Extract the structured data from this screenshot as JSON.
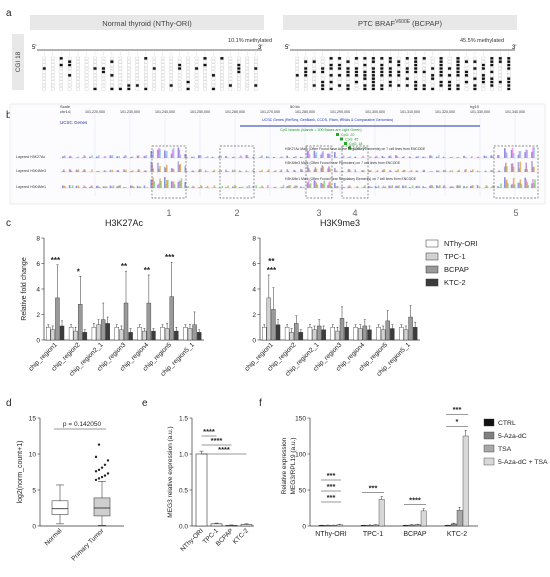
{
  "panel_labels": {
    "a": "a",
    "b": "b",
    "c": "c",
    "d": "d",
    "e": "e",
    "f": "f"
  },
  "panel_a": {
    "left_header": "Normal thyroid (NThy-ORI)",
    "right_header": "PTC BRAF",
    "right_header_sup": "V600E",
    "right_header_tail": " (BCPAP)",
    "side_label": "CGI 18",
    "left_methylation": "10.1% methylated",
    "right_methylation": "45.5% methylated",
    "end5": "5'",
    "end3": "3'"
  },
  "panel_b": {
    "scale_label": "Scale",
    "chrom_label": "chr14:",
    "scale_bar": "50 kb",
    "assembly": "hg19",
    "coords": [
      "101,220,000",
      "101,230,000",
      "101,240,000",
      "101,250,000",
      "101,260,000",
      "101,270,000",
      "101,280,000",
      "101,290,000",
      "101,300,000",
      "101,310,000",
      "101,320,000",
      "101,330,000",
      "101,340,000"
    ],
    "genes_label": "UCSC Genes",
    "genes_desc": "UCSC Genes (RefSeq, GenBank, CCDS, Rfam, tRNAs & Comparative Genomics)",
    "cpg_desc": "CpG Islands (Islands < 300 Bases are Light Green)",
    "cpg_items": [
      "CpG: 20",
      "CpG: 45",
      "CpG: 18",
      "CpG: 30"
    ],
    "tracks": [
      {
        "label": "Layered H3K27Ac",
        "desc": "H3K27Ac Mark (Often Found Near Active Regulatory Elements) on 7 cell lines from ENCODE"
      },
      {
        "label": "Layered H3K4Me3",
        "desc": "H3K4Me3 Mark (Often Found Near Promoters) on 7 cell lines from ENCODE"
      },
      {
        "label": "Layered H3K4Me1",
        "desc": "H3K4Me1 Mark (Often Found Near Regulatory Elements) on 7 cell lines from ENCODE"
      }
    ],
    "regions": [
      "1",
      "2",
      "3",
      "4",
      "5"
    ]
  },
  "panel_c_legend": [
    {
      "name": "NThy-ORI",
      "color": "#ffffff"
    },
    {
      "name": "TPC-1",
      "color": "#d2d2d2"
    },
    {
      "name": "BCPAP",
      "color": "#9a9a9a"
    },
    {
      "name": "KTC-2",
      "color": "#3c3c3c"
    }
  ],
  "panel_f_legend": [
    {
      "name": "CTRL",
      "color": "#111111"
    },
    {
      "name": "5-Aza-dC",
      "color": "#808080"
    },
    {
      "name": "TSA",
      "color": "#a8a8a8"
    },
    {
      "name": "5-Aza-dC + TSA",
      "color": "#d8d8d8"
    }
  ],
  "chart_data": [
    {
      "id": "c_left",
      "type": "bar",
      "title": "H3K27Ac",
      "ylabel": "Relative fold change",
      "ylim": [
        0,
        8
      ],
      "yticks": [
        "0",
        "2",
        "4",
        "6",
        "8"
      ],
      "categories": [
        "chip_region1",
        "chip_region2",
        "chip_region2_1",
        "chip_region3",
        "chip_region4",
        "chip_region5",
        "chip_region5_1"
      ],
      "series": [
        {
          "name": "NThy-ORI",
          "values": [
            1.0,
            1.0,
            1.0,
            1.0,
            1.0,
            1.0,
            1.0
          ],
          "err": [
            0.2,
            0.2,
            0.3,
            0.2,
            0.2,
            0.2,
            0.2
          ]
        },
        {
          "name": "TPC-1",
          "values": [
            0.8,
            0.7,
            1.2,
            0.8,
            0.7,
            0.9,
            0.9
          ],
          "err": [
            0.3,
            0.3,
            0.4,
            0.3,
            0.2,
            0.4,
            0.3
          ]
        },
        {
          "name": "BCPAP",
          "values": [
            3.3,
            2.8,
            1.6,
            2.9,
            2.9,
            3.4,
            1.2
          ],
          "err": [
            2.6,
            2.2,
            1.3,
            2.5,
            2.2,
            2.7,
            1.0
          ]
        },
        {
          "name": "KTC-2",
          "values": [
            1.1,
            0.6,
            1.3,
            0.6,
            0.7,
            0.7,
            0.6
          ],
          "err": [
            0.4,
            0.2,
            0.5,
            0.3,
            0.2,
            0.3,
            0.2
          ]
        }
      ],
      "sig": [
        {
          "cat": 0,
          "text": "***"
        },
        {
          "cat": 1,
          "text": "*"
        },
        {
          "cat": 3,
          "text": "**"
        },
        {
          "cat": 4,
          "text": "**"
        },
        {
          "cat": 5,
          "text": "***"
        }
      ]
    },
    {
      "id": "c_right",
      "type": "bar",
      "title": "H3K9me3",
      "ylim": [
        0,
        8
      ],
      "yticks": [
        "0",
        "2",
        "4",
        "6",
        "8"
      ],
      "categories": [
        "chip_region1",
        "chip_region2",
        "chip_region2_1",
        "chip_region3",
        "chip_region4",
        "chip_region5",
        "chip_region5_1"
      ],
      "series": [
        {
          "name": "NThy-ORI",
          "values": [
            1.0,
            1.0,
            1.0,
            1.0,
            1.0,
            1.0,
            1.0
          ],
          "err": [
            0.2,
            0.2,
            0.2,
            0.2,
            0.2,
            0.2,
            0.2
          ]
        },
        {
          "name": "TPC-1",
          "values": [
            3.3,
            0.6,
            0.8,
            0.7,
            0.9,
            0.8,
            0.8
          ],
          "err": [
            1.8,
            0.3,
            0.3,
            0.3,
            0.3,
            0.3,
            0.3
          ]
        },
        {
          "name": "BCPAP",
          "values": [
            2.4,
            1.3,
            1.1,
            1.7,
            1.1,
            1.5,
            1.8
          ],
          "err": [
            1.7,
            0.6,
            0.5,
            0.9,
            0.5,
            0.8,
            0.9
          ]
        },
        {
          "name": "KTC-2",
          "values": [
            1.2,
            0.6,
            0.8,
            1.0,
            0.8,
            0.9,
            1.0
          ],
          "err": [
            0.4,
            0.2,
            0.3,
            0.4,
            0.3,
            0.3,
            0.4
          ]
        }
      ],
      "sig": [
        {
          "cat": 0,
          "text": "***"
        },
        {
          "cat": 0,
          "text": "**"
        }
      ]
    },
    {
      "id": "d",
      "type": "box",
      "ylabel": "log2(norm_count+1)",
      "ylim": [
        0,
        15
      ],
      "yticks": [
        "0",
        "5",
        "10",
        "15"
      ],
      "categories": [
        "Normal",
        "Primary Tumor"
      ],
      "annotation": "p = 0.142050",
      "boxes": [
        {
          "min": 0.3,
          "q1": 1.6,
          "median": 2.4,
          "q3": 3.5,
          "max": 5.7,
          "outliers": []
        },
        {
          "min": 0.1,
          "q1": 1.4,
          "median": 2.5,
          "q3": 3.9,
          "max": 6.2,
          "outliers": [
            6.4,
            6.6,
            6.8,
            7.0,
            7.3,
            7.6,
            7.8,
            8.1,
            8.5,
            9.1,
            9.6,
            11.3
          ]
        }
      ]
    },
    {
      "id": "e",
      "type": "bar",
      "ylabel": "MEG3 relative expression (a.u.)",
      "ylim": [
        0,
        1.5
      ],
      "yticks": [
        "0.0",
        "0.5",
        "1.0",
        "1.5"
      ],
      "categories": [
        "NThy-ORI",
        "TPC-1",
        "BCPAP",
        "KTC-2"
      ],
      "values": [
        1.0,
        0.03,
        0.01,
        0.02
      ],
      "err": [
        0.04,
        0.01,
        0.005,
        0.01
      ],
      "sig": [
        "****",
        "****",
        "****"
      ]
    },
    {
      "id": "f",
      "type": "bar",
      "ylabel": "Relative expression MEG3/RPL19 (a.u.)",
      "ylim": [
        0,
        150
      ],
      "yticks": [
        "0",
        "50",
        "100",
        "150"
      ],
      "categories": [
        "NThy-ORI",
        "TPC-1",
        "BCPAP",
        "KTC-2"
      ],
      "series": [
        {
          "name": "CTRL",
          "values": [
            1,
            1,
            1,
            1
          ],
          "err": [
            0.2,
            0.2,
            0.2,
            0.2
          ]
        },
        {
          "name": "5-Aza-dC",
          "values": [
            1,
            1,
            1.5,
            3
          ],
          "err": [
            0.3,
            0.5,
            0.5,
            1
          ]
        },
        {
          "name": "TSA",
          "values": [
            1,
            1.5,
            2,
            22
          ],
          "err": [
            0.3,
            0.5,
            0.5,
            4
          ]
        },
        {
          "name": "5-Aza-dC + TSA",
          "values": [
            2,
            37,
            21,
            125
          ],
          "err": [
            0.5,
            4,
            3,
            8
          ]
        }
      ],
      "sig_left": [
        "***",
        "***",
        "***"
      ],
      "sig_groups": [
        {
          "cat": 1,
          "text": "***"
        },
        {
          "cat": 2,
          "text": "****"
        },
        {
          "cat": 3,
          "text": "*"
        },
        {
          "cat": 3,
          "text": "***"
        }
      ]
    }
  ]
}
